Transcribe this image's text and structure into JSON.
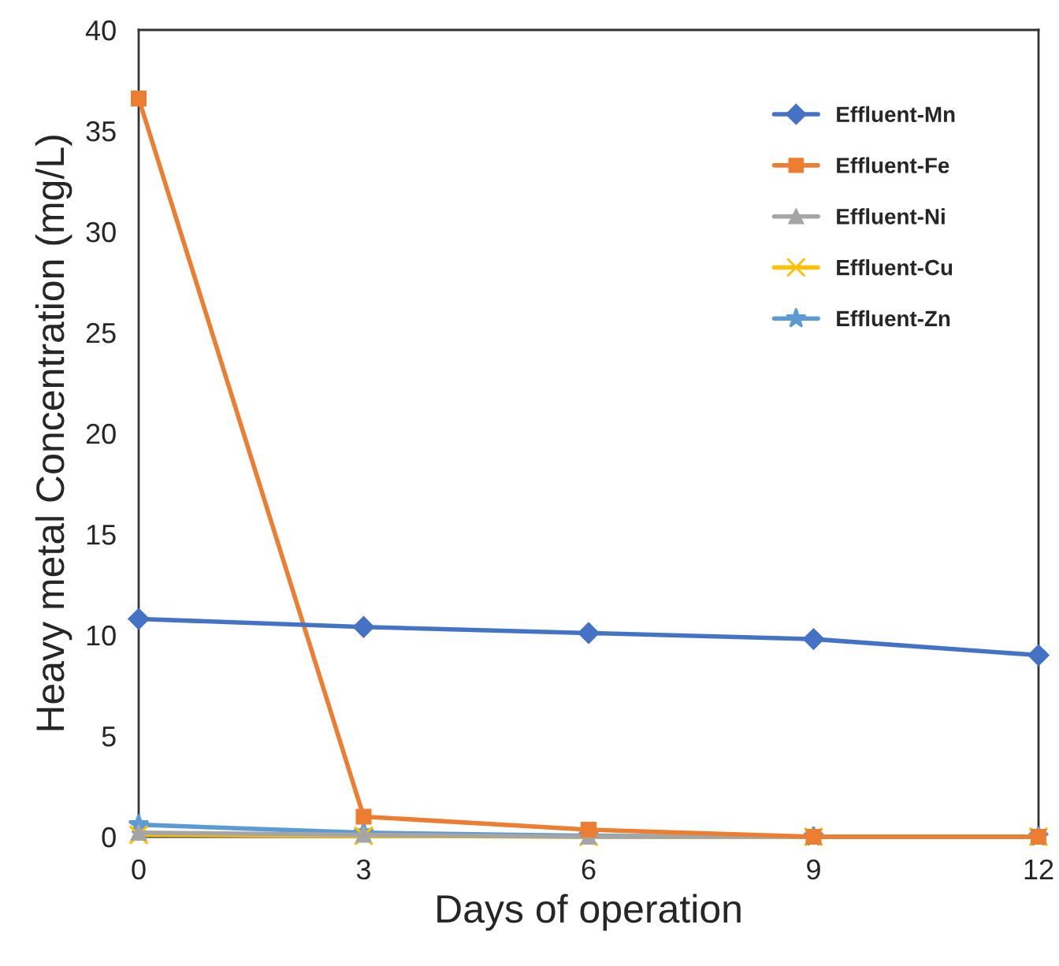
{
  "chart_data": {
    "type": "line",
    "xlabel": "Days of operation",
    "ylabel": "Heavy metal Concentration (mg/L)",
    "x": [
      0,
      3,
      6,
      9,
      12
    ],
    "series": [
      {
        "name": "Effluent-Mn",
        "color": "#4472c4",
        "marker": "diamond",
        "values": [
          10.8,
          10.4,
          10.1,
          9.8,
          9.0
        ]
      },
      {
        "name": "Effluent-Fe",
        "color": "#ed7d31",
        "marker": "square",
        "values": [
          36.6,
          1.0,
          0.35,
          0,
          0
        ]
      },
      {
        "name": "Effluent-Ni",
        "color": "#a5a5a5",
        "marker": "triangle",
        "values": [
          0.2,
          0.1,
          0,
          0,
          0
        ]
      },
      {
        "name": "Effluent-Cu",
        "color": "#ffc000",
        "marker": "cross",
        "values": [
          0.1,
          0.05,
          0,
          0,
          0
        ]
      },
      {
        "name": "Effluent-Zn",
        "color": "#5b9bd5",
        "marker": "star",
        "values": [
          0.6,
          0.2,
          0.05,
          0,
          0
        ]
      }
    ],
    "xlim": [
      0,
      12
    ],
    "xticks": [
      0,
      3,
      6,
      9,
      12
    ],
    "ylim": [
      0,
      40
    ],
    "yticks": [
      0,
      5,
      10,
      15,
      20,
      25,
      30,
      35,
      40
    ],
    "grid": false,
    "legend": "top right",
    "line_style": "solid"
  }
}
